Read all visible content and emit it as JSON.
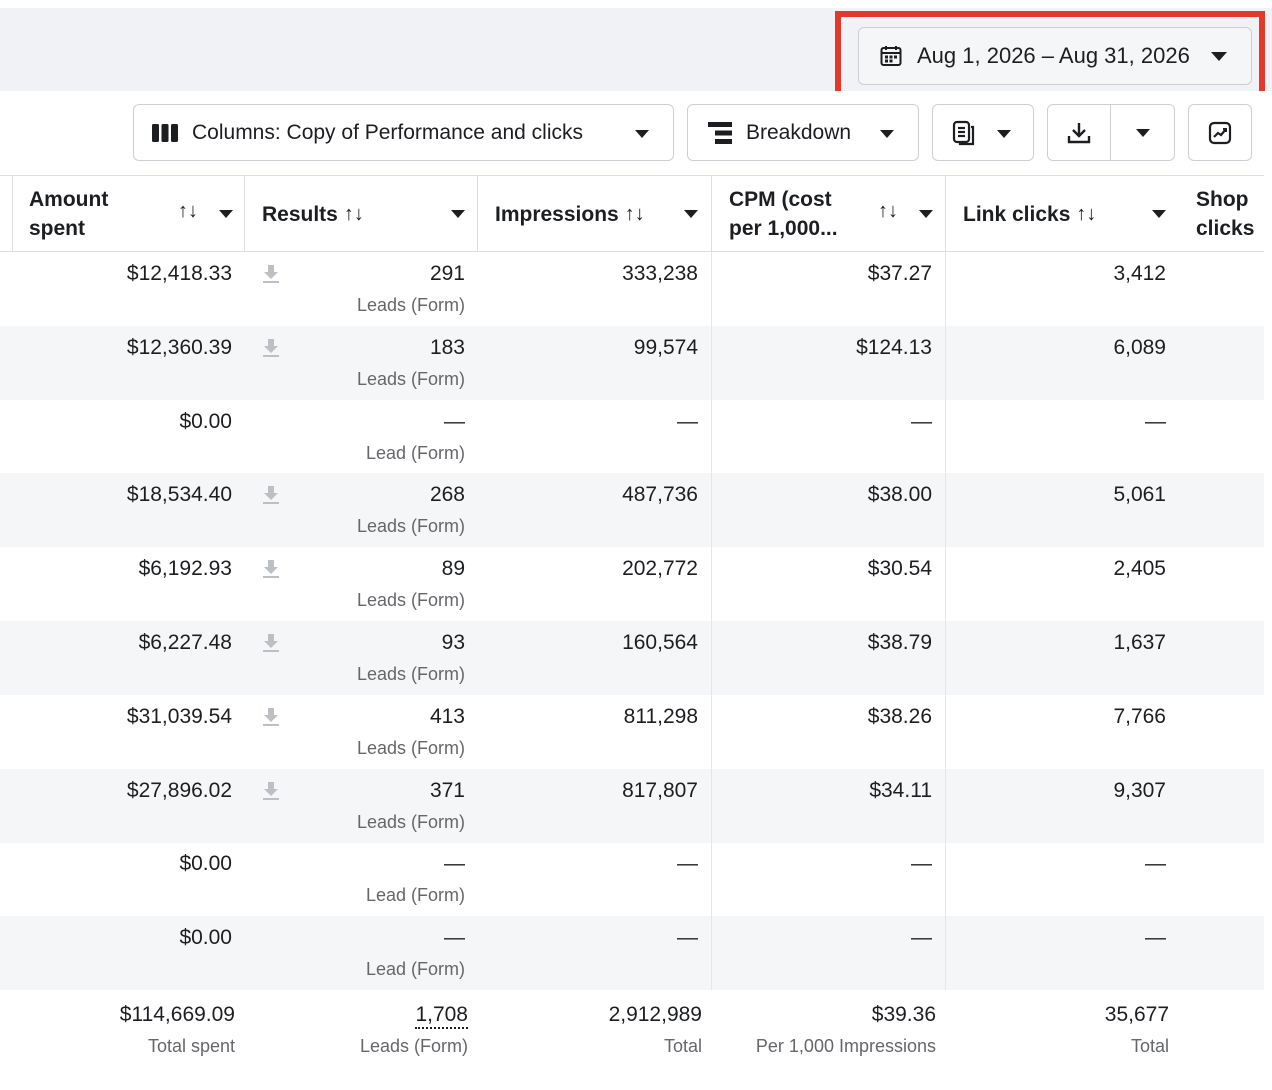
{
  "date_range": {
    "label": "Aug 1, 2026 – Aug 31, 2026"
  },
  "toolbar": {
    "columns_label": "Columns: Copy of Performance and clicks",
    "breakdown_label": "Breakdown"
  },
  "table": {
    "headers": {
      "amount_line1": "Amount",
      "amount_line2": "spent",
      "results": "Results",
      "impressions": "Impressions",
      "cpm_line1": "CPM (cost",
      "cpm_line2": "per 1,000...",
      "link_clicks": "Link clicks",
      "shop_line1": "Shop",
      "shop_line2": "clicks",
      "sort_glyph": "↑↓"
    },
    "rows": [
      {
        "amount": "$12,418.33",
        "results": "291",
        "results_type": "Leads (Form)",
        "impressions": "333,238",
        "cpm": "$37.27",
        "link_clicks": "3,412"
      },
      {
        "amount": "$12,360.39",
        "results": "183",
        "results_type": "Leads (Form)",
        "impressions": "99,574",
        "cpm": "$124.13",
        "link_clicks": "6,089"
      },
      {
        "amount": "$0.00",
        "results": "—",
        "results_type": "Lead (Form)",
        "impressions": "—",
        "cpm": "—",
        "link_clicks": "—"
      },
      {
        "amount": "$18,534.40",
        "results": "268",
        "results_type": "Leads (Form)",
        "impressions": "487,736",
        "cpm": "$38.00",
        "link_clicks": "5,061"
      },
      {
        "amount": "$6,192.93",
        "results": "89",
        "results_type": "Leads (Form)",
        "impressions": "202,772",
        "cpm": "$30.54",
        "link_clicks": "2,405"
      },
      {
        "amount": "$6,227.48",
        "results": "93",
        "results_type": "Leads (Form)",
        "impressions": "160,564",
        "cpm": "$38.79",
        "link_clicks": "1,637"
      },
      {
        "amount": "$31,039.54",
        "results": "413",
        "results_type": "Leads (Form)",
        "impressions": "811,298",
        "cpm": "$38.26",
        "link_clicks": "7,766"
      },
      {
        "amount": "$27,896.02",
        "results": "371",
        "results_type": "Leads (Form)",
        "impressions": "817,807",
        "cpm": "$34.11",
        "link_clicks": "9,307"
      },
      {
        "amount": "$0.00",
        "results": "—",
        "results_type": "Lead (Form)",
        "impressions": "—",
        "cpm": "—",
        "link_clicks": "—"
      },
      {
        "amount": "$0.00",
        "results": "—",
        "results_type": "Lead (Form)",
        "impressions": "—",
        "cpm": "—",
        "link_clicks": "—"
      }
    ],
    "totals": {
      "amount": "$114,669.09",
      "amount_label": "Total spent",
      "results": "1,708",
      "results_label": "Leads (Form)",
      "impressions": "2,912,989",
      "impressions_label": "Total",
      "cpm": "$39.36",
      "cpm_label": "Per 1,000 Impressions",
      "link_clicks": "35,677",
      "link_clicks_label": "Total"
    }
  },
  "colors": {
    "highlight": "#e3392a",
    "band": "#f0f2f5",
    "alt_row": "#f5f6f7"
  },
  "icons": [
    "calendar-icon",
    "columns-icon",
    "breakdown-icon",
    "reports-icon",
    "download-icon",
    "chart-icon",
    "sort-icon",
    "lead-download-icon"
  ]
}
